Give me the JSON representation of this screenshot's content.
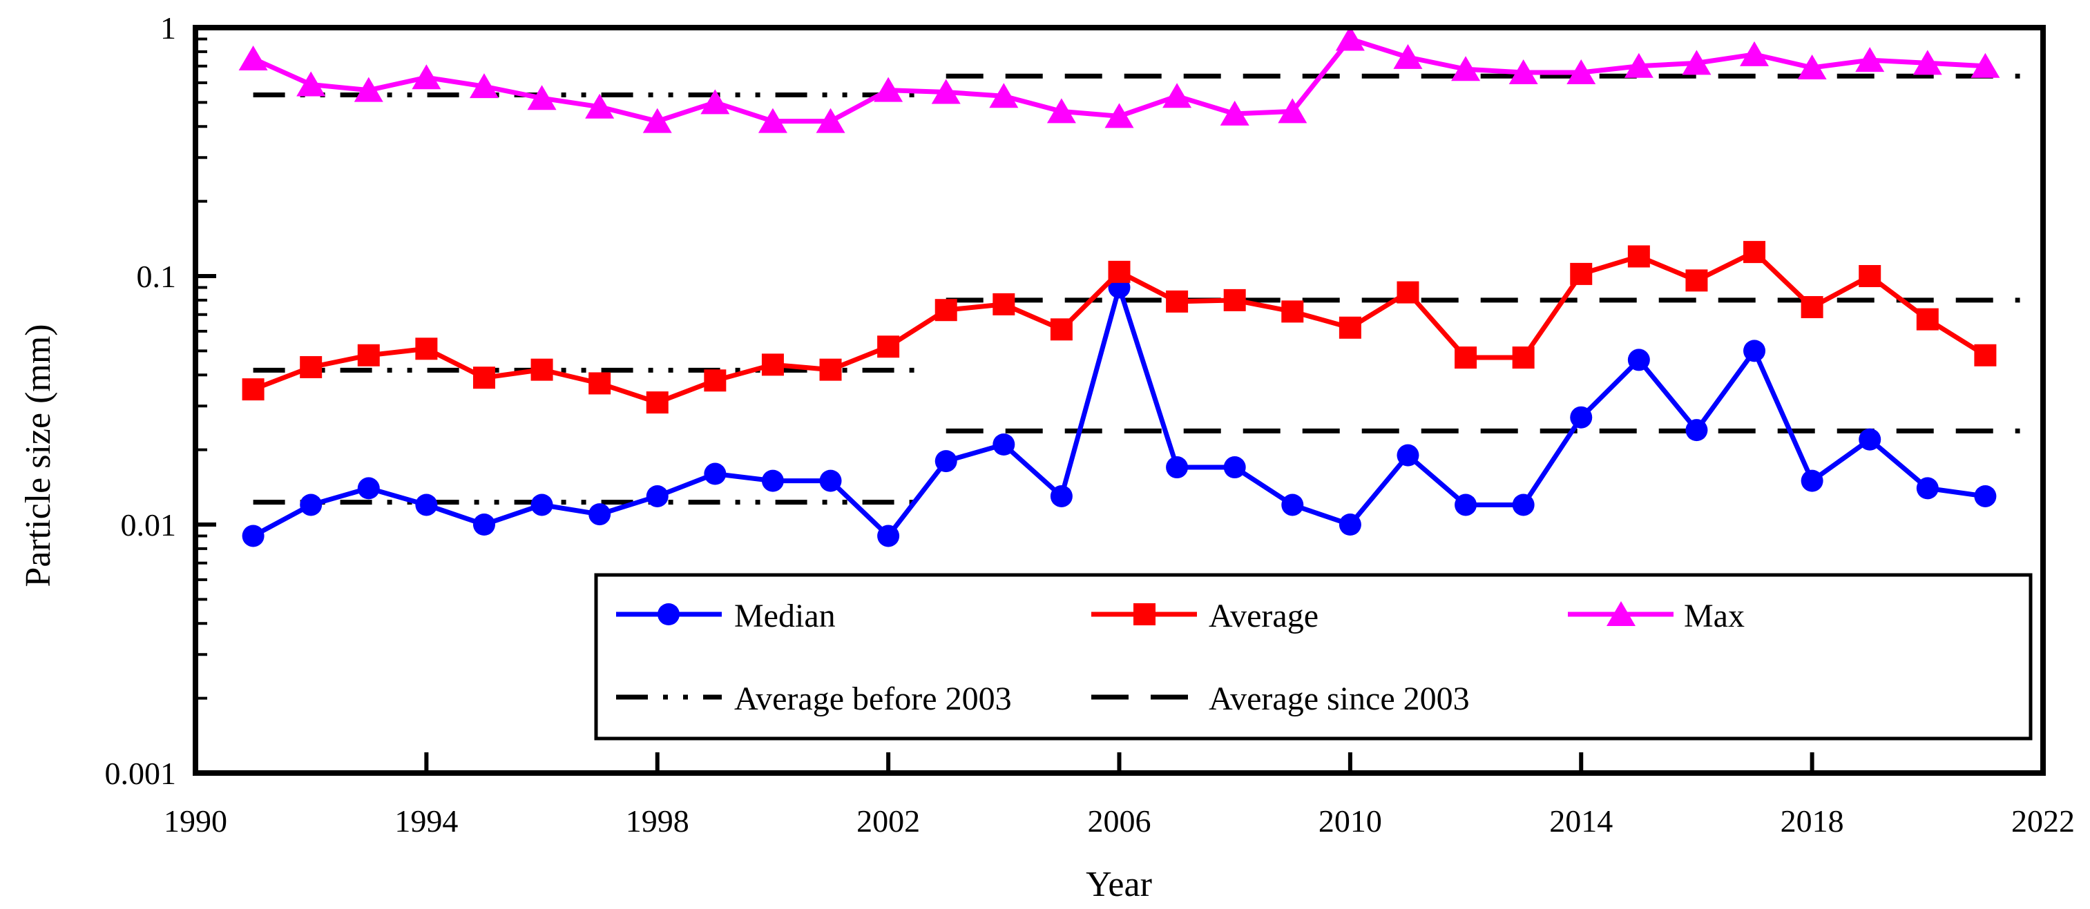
{
  "chart_data": {
    "type": "line",
    "title": "",
    "xlabel": "Year",
    "ylabel": "Particle size (mm)",
    "yscale": "log",
    "ylim": [
      0.001,
      1
    ],
    "xlim": [
      1990,
      2022
    ],
    "grid": false,
    "legend_position": "bottom-center-box",
    "y_tick_labels": [
      "1",
      "0.1",
      "0.01",
      "0.001"
    ],
    "y_tick_values": [
      1,
      0.1,
      0.01,
      0.001
    ],
    "x_tick_values": [
      1990,
      1994,
      1998,
      2002,
      2006,
      2010,
      2014,
      2018,
      2022
    ],
    "x": [
      1991,
      1992,
      1993,
      1994,
      1995,
      1996,
      1997,
      1998,
      1999,
      2000,
      2001,
      2002,
      2003,
      2004,
      2005,
      2006,
      2007,
      2008,
      2009,
      2010,
      2011,
      2012,
      2013,
      2014,
      2015,
      2016,
      2017,
      2018,
      2019,
      2020,
      2021
    ],
    "series": [
      {
        "name": "Median",
        "color": "#0000ff",
        "marker": "circle",
        "values": [
          0.009,
          0.012,
          0.014,
          0.012,
          0.01,
          0.012,
          0.011,
          0.013,
          0.016,
          0.015,
          0.015,
          0.009,
          0.018,
          0.021,
          0.013,
          0.09,
          0.017,
          0.017,
          0.012,
          0.01,
          0.019,
          0.012,
          0.012,
          0.027,
          0.046,
          0.024,
          0.05,
          0.015,
          0.022,
          0.014,
          0.013
        ]
      },
      {
        "name": "Average",
        "color": "#ff0000",
        "marker": "square",
        "values": [
          0.035,
          0.043,
          0.048,
          0.051,
          0.039,
          0.042,
          0.037,
          0.031,
          0.038,
          0.044,
          0.042,
          0.052,
          0.073,
          0.077,
          0.061,
          0.104,
          0.079,
          0.08,
          0.072,
          0.062,
          0.086,
          0.047,
          0.047,
          0.102,
          0.12,
          0.096,
          0.125,
          0.075,
          0.1,
          0.067,
          0.048
        ]
      },
      {
        "name": "Max",
        "color": "#ff00ff",
        "marker": "triangle",
        "values": [
          0.75,
          0.59,
          0.56,
          0.63,
          0.58,
          0.52,
          0.48,
          0.42,
          0.5,
          0.42,
          0.42,
          0.56,
          0.55,
          0.53,
          0.46,
          0.44,
          0.53,
          0.45,
          0.46,
          0.9,
          0.76,
          0.68,
          0.66,
          0.66,
          0.7,
          0.72,
          0.78,
          0.69,
          0.74,
          0.72,
          0.7
        ]
      }
    ],
    "reference_lines": [
      {
        "name": "Average before 2003",
        "style": "dash-dot-dot",
        "color": "#000000",
        "x_start": 1991,
        "x_end": 2002.7,
        "levels": [
          {
            "series": "Median",
            "value": 0.0123
          },
          {
            "series": "Average",
            "value": 0.0418
          },
          {
            "series": "Max",
            "value": 0.536
          }
        ]
      },
      {
        "name": "Average since 2003",
        "style": "long-dash",
        "color": "#000000",
        "x_start": 2003,
        "x_end": 2021.6,
        "levels": [
          {
            "series": "Median",
            "value": 0.0238
          },
          {
            "series": "Average",
            "value": 0.08
          },
          {
            "series": "Max",
            "value": 0.638
          }
        ]
      }
    ],
    "legend": {
      "entries_row1": [
        "Median",
        "Average",
        "Max"
      ],
      "entries_row2": [
        "Average before 2003",
        "Average since 2003"
      ]
    }
  }
}
